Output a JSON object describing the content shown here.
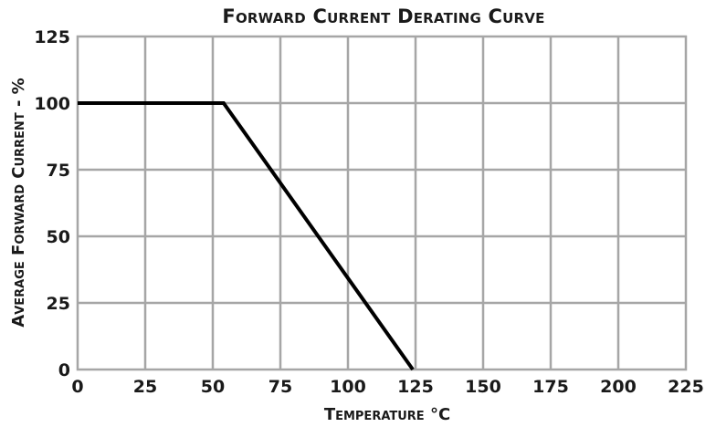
{
  "chart_data": {
    "type": "line",
    "title": "Forward Current Derating Curve",
    "xlabel": "Temperature °C",
    "ylabel": "Average Forward Current - %",
    "xlim": [
      0,
      225
    ],
    "ylim": [
      0,
      125
    ],
    "x_ticks": [
      0,
      25,
      50,
      75,
      100,
      125,
      150,
      175,
      200,
      225
    ],
    "y_ticks": [
      0,
      25,
      50,
      75,
      100,
      125
    ],
    "grid": true,
    "series": [
      {
        "x": [
          0,
          54,
          124
        ],
        "y": [
          100,
          100,
          0
        ],
        "color": "#000000"
      }
    ]
  }
}
